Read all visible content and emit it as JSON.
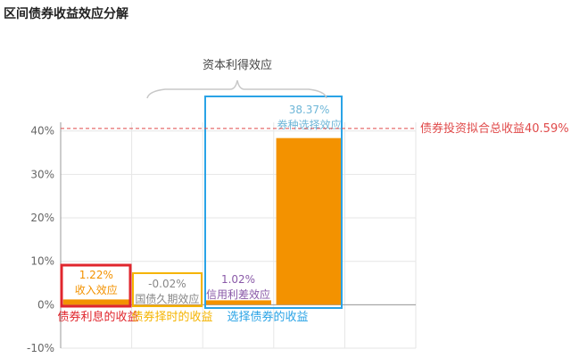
{
  "title": "区间债券收益效应分解",
  "colors": {
    "bar": "#f39200",
    "grid": "#e6e6e6",
    "axis": "#999999",
    "total_line": "#e04a4a",
    "red_box": "#e0262d",
    "yellow_box": "#f5b400",
    "blue_box": "#2aa3e6",
    "brace": "#c8c8c8",
    "label_orange": "#f39200",
    "label_gray": "#888888",
    "label_purple": "#8a5aa8",
    "label_blue": "#6fb7d8"
  },
  "chart_data": {
    "type": "bar",
    "ylim": [
      -10,
      42
    ],
    "yticks": [
      {
        "value": -10,
        "label": "-10%"
      },
      {
        "value": 0,
        "label": "0%"
      },
      {
        "value": 10,
        "label": "10%"
      },
      {
        "value": 20,
        "label": "20%"
      },
      {
        "value": 30,
        "label": "30%"
      },
      {
        "value": 40,
        "label": "40%"
      }
    ],
    "grid": true,
    "bars": [
      {
        "name": "收入效应",
        "value": 1.22,
        "value_label": "1.22%",
        "label_color": "#f39200"
      },
      {
        "name": "国债久期效应",
        "value": -0.02,
        "value_label": "-0.02%",
        "label_color": "#888888"
      },
      {
        "name": "信用利差效应",
        "value": 1.02,
        "value_label": "1.02%",
        "label_color": "#8a5aa8"
      },
      {
        "name": "券种选择效应",
        "value": 38.37,
        "value_label": "38.37%",
        "label_color": "#6fb7d8"
      }
    ],
    "total": {
      "value": 40.59,
      "label": "债券投资拟合总收益40.59%"
    },
    "groups": [
      {
        "label": "债券利息的收益",
        "color": "#e0262d"
      },
      {
        "label": "债券择时的收益",
        "color": "#f5b400"
      },
      {
        "label": "选择债券的收益",
        "color": "#2aa3e6"
      }
    ],
    "brace_label": "资本利得效应"
  }
}
